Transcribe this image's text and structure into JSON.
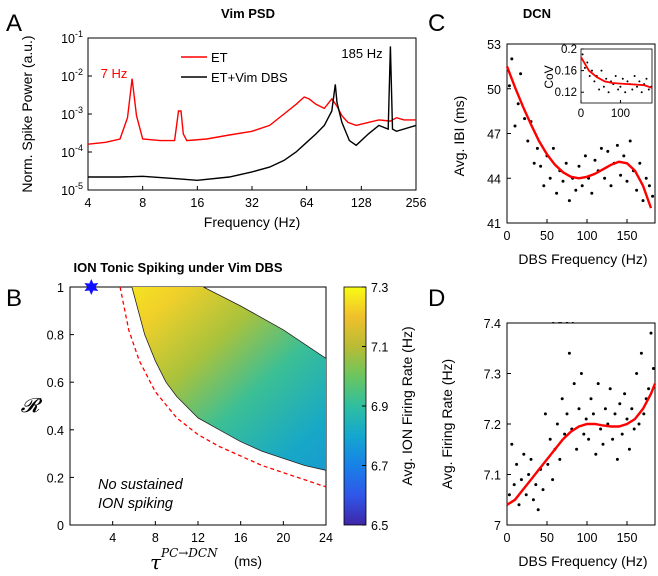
{
  "chart_data": [
    {
      "panel": "A",
      "type": "line",
      "title": "Vim PSD",
      "xlabel": "Frequency (Hz)",
      "ylabel": "Norm. Spike Power (a.u.)",
      "x_scale": "log2",
      "y_scale": "log10",
      "xlim": [
        4,
        256
      ],
      "ylim": [
        1e-05,
        0.1
      ],
      "xticks": [
        "4",
        "8",
        "16",
        "32",
        "64",
        "128",
        "256"
      ],
      "yticks": [
        "10^-1",
        "10^-2",
        "10^-3",
        "10^-4",
        "10^-5"
      ],
      "legend": "top-center",
      "annotations": [
        {
          "text": "7 Hz",
          "x": 7,
          "y": 0.0085,
          "color": "#ff0000"
        },
        {
          "text": "185 Hz",
          "x": 185,
          "y": 0.06,
          "color": "#000000"
        }
      ],
      "series": [
        {
          "name": "ET",
          "color": "#ff0000",
          "x": [
            4,
            5,
            6,
            6.6,
            7,
            7.4,
            8,
            10,
            12,
            12.6,
            13,
            13.4,
            14,
            18,
            24,
            32,
            40,
            48,
            56,
            62,
            66,
            72,
            80,
            88,
            94,
            100,
            108,
            120,
            140,
            160,
            185,
            200,
            220,
            256
          ],
          "y": [
            0.00016,
            0.00018,
            0.00022,
            0.0008,
            0.0085,
            0.0009,
            0.00022,
            0.0002,
            0.0002,
            0.0012,
            0.0012,
            0.0003,
            0.0002,
            0.00022,
            0.00028,
            0.00035,
            0.0005,
            0.001,
            0.0018,
            0.0028,
            0.0025,
            0.0018,
            0.0014,
            0.0025,
            0.0016,
            0.0009,
            0.0006,
            0.0005,
            0.0006,
            0.0007,
            0.00065,
            0.0008,
            0.0007,
            0.0007
          ]
        },
        {
          "name": "ET+Vim DBS",
          "color": "#000000",
          "x": [
            4,
            6,
            8,
            12,
            16,
            24,
            32,
            40,
            48,
            56,
            64,
            72,
            80,
            88,
            92,
            94,
            100,
            110,
            120,
            140,
            160,
            180,
            185,
            190,
            200,
            256
          ],
          "y": [
            2.2e-05,
            2.2e-05,
            2.3e-05,
            2e-05,
            1.8e-05,
            2.2e-05,
            3e-05,
            4e-05,
            6e-05,
            0.0001,
            0.00018,
            0.0003,
            0.0005,
            0.0012,
            0.006,
            0.002,
            0.0006,
            0.0002,
            0.00015,
            0.0003,
            0.0005,
            0.0004,
            0.06,
            0.0004,
            0.00035,
            0.0005
          ]
        }
      ]
    },
    {
      "panel": "B",
      "type": "heatmap",
      "title": "ION Tonic Spiking under Vim DBS",
      "xlabel": "(ms)",
      "xlabel_math": "τ",
      "xlabel_math_sup": "PC→DCN",
      "ylabel": "𝓡",
      "xlim": [
        0,
        24
      ],
      "ylim": [
        0,
        1
      ],
      "xticks": [
        "4",
        "8",
        "12",
        "16",
        "20",
        "24"
      ],
      "yticks": [
        "0",
        "0.2",
        "0.4",
        "0.6",
        "0.8",
        "1"
      ],
      "colorbar_label": "Avg. ION Firing Rate (Hz)",
      "colorbar_ticks": [
        "7.3",
        "7.1",
        "6.9",
        "6.7",
        "6.5"
      ],
      "crange": [
        6.5,
        7.3
      ],
      "colormap": [
        "#3e26a8",
        "#2f57e9",
        "#1881e7",
        "#14a7cf",
        "#2fbfa0",
        "#6ac560",
        "#b9bc34",
        "#f0c02c",
        "#f9fb15"
      ],
      "marker": {
        "x": 2,
        "y": 1,
        "shape": "star",
        "color": "#1010ff"
      },
      "annotation": [
        "No sustained",
        "ION spiking"
      ],
      "boundary_lower": {
        "x": [
          5.8,
          7,
          8,
          9,
          10,
          12,
          14,
          16,
          18,
          20,
          22,
          24
        ],
        "y": [
          1.0,
          0.8,
          0.69,
          0.6,
          0.54,
          0.45,
          0.4,
          0.35,
          0.31,
          0.28,
          0.25,
          0.23
        ]
      },
      "boundary_upper": {
        "x": [
          12.5,
          16,
          20,
          24
        ],
        "y": [
          1.0,
          0.92,
          0.82,
          0.7
        ]
      },
      "threshold_dashed": {
        "color": "#ff0000",
        "x": [
          4.7,
          5.5,
          6.5,
          8,
          10,
          12,
          14,
          16,
          18,
          20,
          22,
          24
        ],
        "y": [
          1.0,
          0.82,
          0.69,
          0.56,
          0.45,
          0.38,
          0.33,
          0.29,
          0.25,
          0.22,
          0.19,
          0.16
        ]
      }
    },
    {
      "panel": "C",
      "type": "scatter",
      "title": "DCN",
      "xlabel": "DBS Frequency (Hz)",
      "ylabel": "Avg. IBI (ms)",
      "xlim": [
        0,
        185
      ],
      "ylim": [
        41,
        53
      ],
      "xticks": [
        "0",
        "50",
        "100",
        "150"
      ],
      "yticks": [
        "41",
        "44",
        "47",
        "50",
        "53"
      ],
      "points_x": [
        3,
        6,
        10,
        14,
        17,
        22,
        26,
        30,
        34,
        38,
        42,
        46,
        50,
        54,
        58,
        62,
        66,
        70,
        74,
        78,
        82,
        86,
        90,
        94,
        98,
        102,
        106,
        110,
        114,
        118,
        122,
        126,
        130,
        134,
        138,
        142,
        146,
        150,
        154,
        158,
        162,
        166,
        170,
        174,
        178,
        182
      ],
      "points_y": [
        50.2,
        52.0,
        47.5,
        49.0,
        51.0,
        48.0,
        46.5,
        47.8,
        45.0,
        46.0,
        44.8,
        43.5,
        45.5,
        44.0,
        46.0,
        43.0,
        44.5,
        43.8,
        45.0,
        42.5,
        44.0,
        43.2,
        44.8,
        43.5,
        45.5,
        44.0,
        43.0,
        45.2,
        44.5,
        46.0,
        44.0,
        45.8,
        43.5,
        45.0,
        46.2,
        44.2,
        45.5,
        43.8,
        46.5,
        44.5,
        43.2,
        45.0,
        42.5,
        44.0,
        43.5,
        42.8
      ],
      "fit_x": [
        0,
        10,
        20,
        30,
        40,
        50,
        60,
        70,
        80,
        90,
        100,
        110,
        120,
        130,
        140,
        150,
        160,
        170,
        180
      ],
      "fit_y": [
        51.5,
        50.1,
        48.8,
        47.6,
        46.5,
        45.6,
        44.9,
        44.4,
        44.1,
        44.0,
        44.1,
        44.3,
        44.6,
        44.9,
        45.1,
        45.0,
        44.5,
        43.5,
        42.0
      ],
      "inset": {
        "ylabel": "CoV",
        "xlim": [
          0,
          180
        ],
        "ylim": [
          0.1,
          0.2
        ],
        "xticks": [
          "0",
          "100"
        ],
        "yticks": [
          "0.2",
          "0.16",
          "0.12"
        ],
        "points_x": [
          4,
          10,
          16,
          22,
          28,
          34,
          40,
          46,
          52,
          58,
          64,
          70,
          76,
          82,
          88,
          94,
          100,
          106,
          112,
          118,
          124,
          130,
          136,
          142,
          148,
          154,
          160,
          166,
          172,
          178
        ],
        "points_y": [
          0.19,
          0.165,
          0.175,
          0.15,
          0.16,
          0.14,
          0.15,
          0.125,
          0.16,
          0.13,
          0.145,
          0.12,
          0.14,
          0.135,
          0.15,
          0.125,
          0.13,
          0.145,
          0.12,
          0.14,
          0.135,
          0.125,
          0.15,
          0.13,
          0.14,
          0.12,
          0.135,
          0.145,
          0.125,
          0.13
        ],
        "fit_x": [
          0,
          20,
          40,
          60,
          80,
          100,
          120,
          140,
          160,
          180
        ],
        "fit_y": [
          0.185,
          0.16,
          0.148,
          0.14,
          0.137,
          0.136,
          0.135,
          0.134,
          0.133,
          0.128
        ]
      }
    },
    {
      "panel": "D",
      "type": "scatter",
      "title": "ION",
      "xlabel": "DBS Frequency (Hz)",
      "ylabel": "Avg. Firing Rate (Hz)",
      "xlim": [
        0,
        185
      ],
      "ylim": [
        7.0,
        7.4
      ],
      "xticks": [
        "0",
        "50",
        "100",
        "150"
      ],
      "yticks": [
        "7.4",
        "7.3",
        "7.2",
        "7.1",
        "7"
      ],
      "points_x": [
        3,
        6,
        9,
        12,
        15,
        18,
        21,
        24,
        27,
        30,
        33,
        36,
        39,
        42,
        45,
        48,
        51,
        54,
        57,
        60,
        63,
        66,
        69,
        72,
        75,
        78,
        81,
        84,
        87,
        90,
        93,
        96,
        99,
        102,
        105,
        108,
        111,
        114,
        117,
        120,
        123,
        126,
        129,
        132,
        135,
        138,
        141,
        144,
        147,
        150,
        153,
        156,
        159,
        162,
        165,
        168,
        171,
        174,
        177,
        180,
        183
      ],
      "points_y": [
        7.06,
        7.16,
        7.08,
        7.12,
        7.04,
        7.09,
        7.14,
        7.06,
        7.1,
        7.13,
        7.05,
        7.08,
        7.03,
        7.11,
        7.07,
        7.22,
        7.12,
        7.17,
        7.09,
        7.15,
        7.2,
        7.13,
        7.25,
        7.18,
        7.22,
        7.34,
        7.19,
        7.28,
        7.15,
        7.23,
        7.3,
        7.18,
        7.21,
        7.17,
        7.25,
        7.22,
        7.14,
        7.28,
        7.19,
        7.16,
        7.23,
        7.2,
        7.27,
        7.17,
        7.22,
        7.13,
        7.24,
        7.18,
        7.26,
        7.21,
        7.15,
        7.23,
        7.19,
        7.3,
        7.2,
        7.34,
        7.22,
        7.25,
        7.27,
        7.38,
        7.31
      ],
      "fit_x": [
        0,
        10,
        20,
        30,
        40,
        50,
        60,
        70,
        80,
        90,
        100,
        110,
        120,
        130,
        140,
        150,
        160,
        170,
        180,
        185
      ],
      "fit_y": [
        7.04,
        7.05,
        7.07,
        7.09,
        7.11,
        7.13,
        7.15,
        7.17,
        7.185,
        7.195,
        7.2,
        7.2,
        7.197,
        7.195,
        7.195,
        7.2,
        7.21,
        7.23,
        7.26,
        7.28
      ]
    }
  ]
}
